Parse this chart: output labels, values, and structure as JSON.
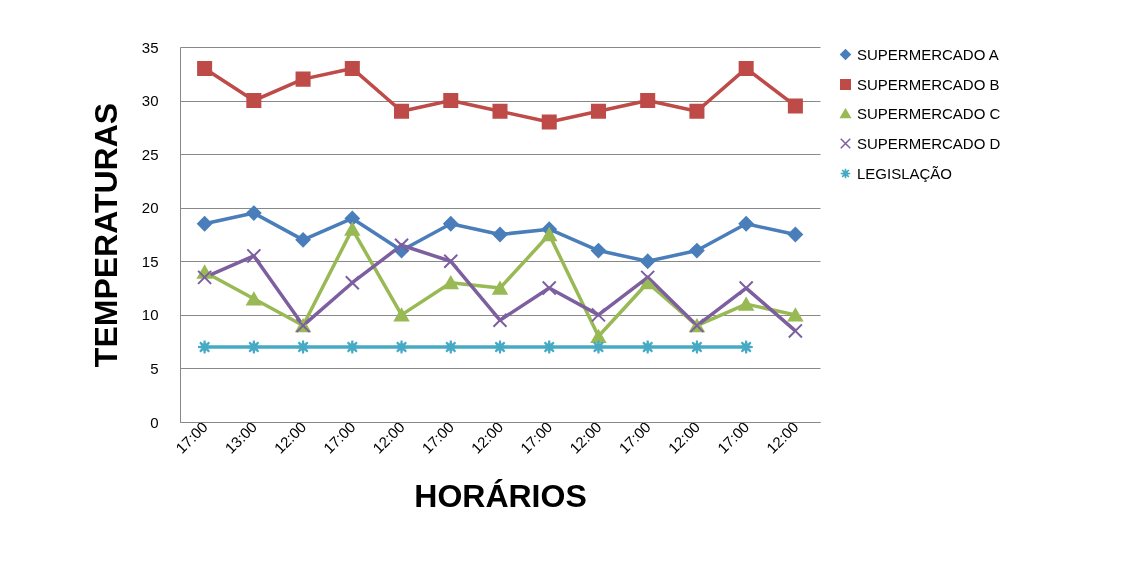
{
  "chart_data": {
    "type": "line",
    "xlabel": "HORÁRIOS",
    "ylabel": "TEMPERATURAS",
    "categories": [
      "17:00",
      "13:00",
      "12:00",
      "17:00",
      "12:00",
      "17:00",
      "12:00",
      "17:00",
      "12:00",
      "17:00",
      "12:00",
      "17:00",
      "12:00"
    ],
    "ylim": [
      0,
      35
    ],
    "yticks": [
      0,
      5,
      10,
      15,
      20,
      25,
      30,
      35
    ],
    "grid": "y",
    "legend": "right",
    "series": [
      {
        "name": "SUPERMERCADO A",
        "color": "#4a7ebb",
        "marker": "diamond",
        "values": [
          18.5,
          19.5,
          17,
          19,
          16,
          18.5,
          17.5,
          18,
          16,
          15,
          16,
          18.5,
          17.5
        ]
      },
      {
        "name": "SUPERMERCADO B",
        "color": "#be4b48",
        "marker": "square",
        "values": [
          33,
          30,
          32,
          33,
          29,
          30,
          29,
          28,
          29,
          30,
          29,
          33,
          29.5
        ]
      },
      {
        "name": "SUPERMERCADO C",
        "color": "#98b954",
        "marker": "triangle",
        "values": [
          14,
          11.5,
          9,
          18,
          10,
          13,
          12.5,
          17.5,
          8,
          13,
          9,
          11,
          10
        ]
      },
      {
        "name": "SUPERMERCADO D",
        "color": "#7d5fa0",
        "marker": "cross",
        "values": [
          13.5,
          15.5,
          9,
          13,
          16.5,
          15,
          9.5,
          12.5,
          10,
          13.5,
          9,
          12.5,
          8.5
        ]
      },
      {
        "name": "LEGISLAÇÃO",
        "color": "#46aac5",
        "marker": "star",
        "values": [
          7,
          7,
          7,
          7,
          7,
          7,
          7,
          7,
          7,
          7,
          7,
          7,
          null
        ]
      }
    ]
  }
}
